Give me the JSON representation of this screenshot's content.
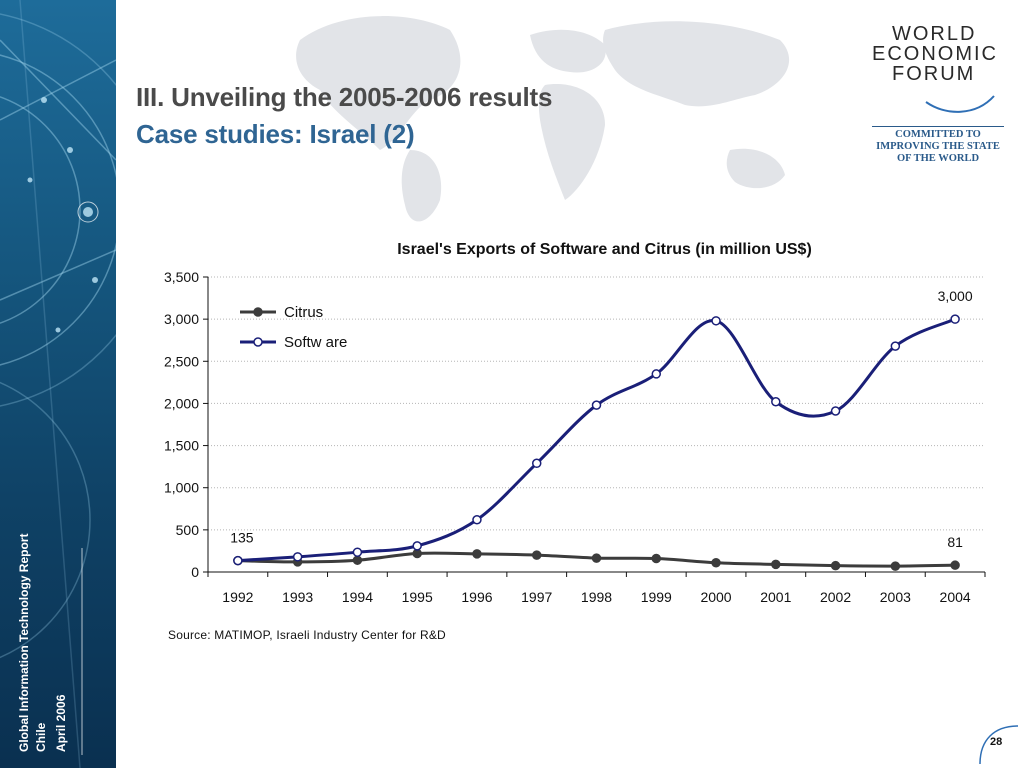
{
  "slide": {
    "title_line1": "III. Unveiling the 2005-2006 results",
    "title_line2": "Case studies: Israel (2)",
    "source": "Source: MATIMOP, Israeli Industry Center for R&D",
    "page_number": "28"
  },
  "sidebar": {
    "report_name": "Global Information Technology Report",
    "location": "Chile",
    "date": "April 2006"
  },
  "logo": {
    "line1": "WORLD",
    "line2": "ECONOMIC",
    "line3": "FORUM",
    "tagline_1": "COMMITTED TO",
    "tagline_2": "IMPROVING THE STATE",
    "tagline_3": "OF THE WORLD"
  },
  "colors": {
    "software_line": "#1a1f78",
    "citrus_line": "#3c3c3c",
    "title_accent": "#2f6593",
    "sidebar": "#15567e"
  },
  "chart_data": {
    "type": "line",
    "title": "Israel's Exports of Software and Citrus (in million US$)",
    "categories": [
      "1992",
      "1993",
      "1994",
      "1995",
      "1996",
      "1997",
      "1998",
      "1999",
      "2000",
      "2001",
      "2002",
      "2003",
      "2004"
    ],
    "series": [
      {
        "name": "Citrus",
        "marker": "filled-circle",
        "values": [
          135,
          120,
          140,
          220,
          215,
          200,
          165,
          160,
          110,
          90,
          75,
          70,
          81
        ]
      },
      {
        "name": "Softw are",
        "marker": "open-circle",
        "values": [
          135,
          180,
          235,
          310,
          620,
          1290,
          1980,
          2350,
          2980,
          2020,
          1910,
          2680,
          3000
        ]
      }
    ],
    "ylim": [
      0,
      3500
    ],
    "yticks": [
      0,
      500,
      1000,
      1500,
      2000,
      2500,
      3000,
      3500
    ],
    "ytick_labels": [
      "0",
      "500",
      "1,000",
      "1,500",
      "2,000",
      "2,500",
      "3,000",
      "3,500"
    ],
    "data_labels": [
      {
        "series": "Softw are",
        "category": "1992",
        "text": "135"
      },
      {
        "series": "Softw are",
        "category": "2004",
        "text": "3,000"
      },
      {
        "series": "Citrus",
        "category": "2004",
        "text": "81"
      }
    ],
    "grid": "horizontal-dotted",
    "legend_position": "top-left"
  }
}
